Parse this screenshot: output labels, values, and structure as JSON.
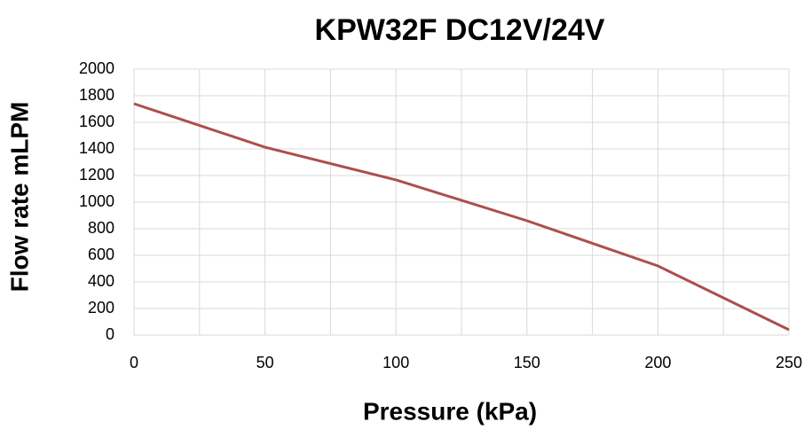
{
  "chart_data": {
    "type": "line",
    "title": "KPW32F  DC12V/24V",
    "x_label": "Pressure (kPa)",
    "y_label": "Flow rate mLPM",
    "x": [
      0,
      50,
      100,
      150,
      200,
      250
    ],
    "series": [
      {
        "name": "KPW32F",
        "color": "#ac4f4f",
        "values": [
          1740,
          1413,
          1167,
          860,
          520,
          40
        ]
      }
    ],
    "xlim": [
      0,
      250
    ],
    "xticks": [
      0,
      50,
      100,
      150,
      200,
      250
    ],
    "x_minor_grid": [
      25,
      75,
      125,
      175,
      225
    ],
    "ylim": [
      0,
      2000
    ],
    "yticks": [
      0,
      200,
      400,
      600,
      800,
      1000,
      1200,
      1400,
      1600,
      1800,
      2000
    ],
    "grid": true,
    "legend": false
  }
}
